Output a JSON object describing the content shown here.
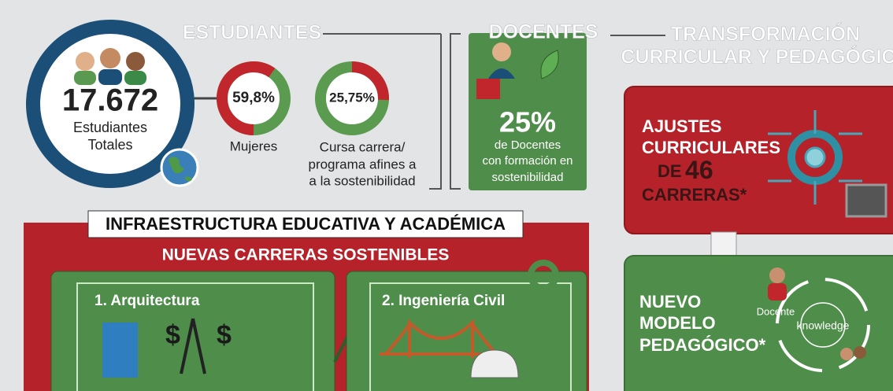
{
  "header": {
    "students": "ESTUDIANTES",
    "teachers": "DOCENTES",
    "transformation": [
      "TRANSFORMACIÓN",
      "CURRICULAR Y PEDAGÓGICA"
    ]
  },
  "students": {
    "total": "17.672",
    "total_label": [
      "Estudiantes",
      "Totales"
    ],
    "women": {
      "value": 59.8,
      "label": "59,8%",
      "caption": [
        "Mujeres"
      ]
    },
    "sustainability": {
      "value": 25.75,
      "label": "25,75%",
      "caption": [
        "Cursa carrera/",
        "programa afines a",
        "a la sostenibilidad"
      ]
    }
  },
  "teachers": {
    "value": "25%",
    "caption": [
      "de Docentes",
      "con formación en",
      "sostenibilidad"
    ]
  },
  "curricular": {
    "lines": [
      "AJUSTES",
      "CURRICULARES"
    ],
    "prefix": "DE",
    "number": "46",
    "last": "CARRERAS*"
  },
  "pedagogical": {
    "lines": [
      "NUEVO",
      "MODELO",
      "PEDAGÓGICO*"
    ],
    "teacher": "Docente",
    "center": "knowledge"
  },
  "infrastructure": {
    "title": "INFRAESTRUCTURA EDUCATIVA Y ACADÉMICA",
    "subtitle": "NUEVAS CARRERAS SOSTENIBLES",
    "careers": [
      "1. Arquitectura",
      "2. Ingeniería Civil"
    ]
  }
}
